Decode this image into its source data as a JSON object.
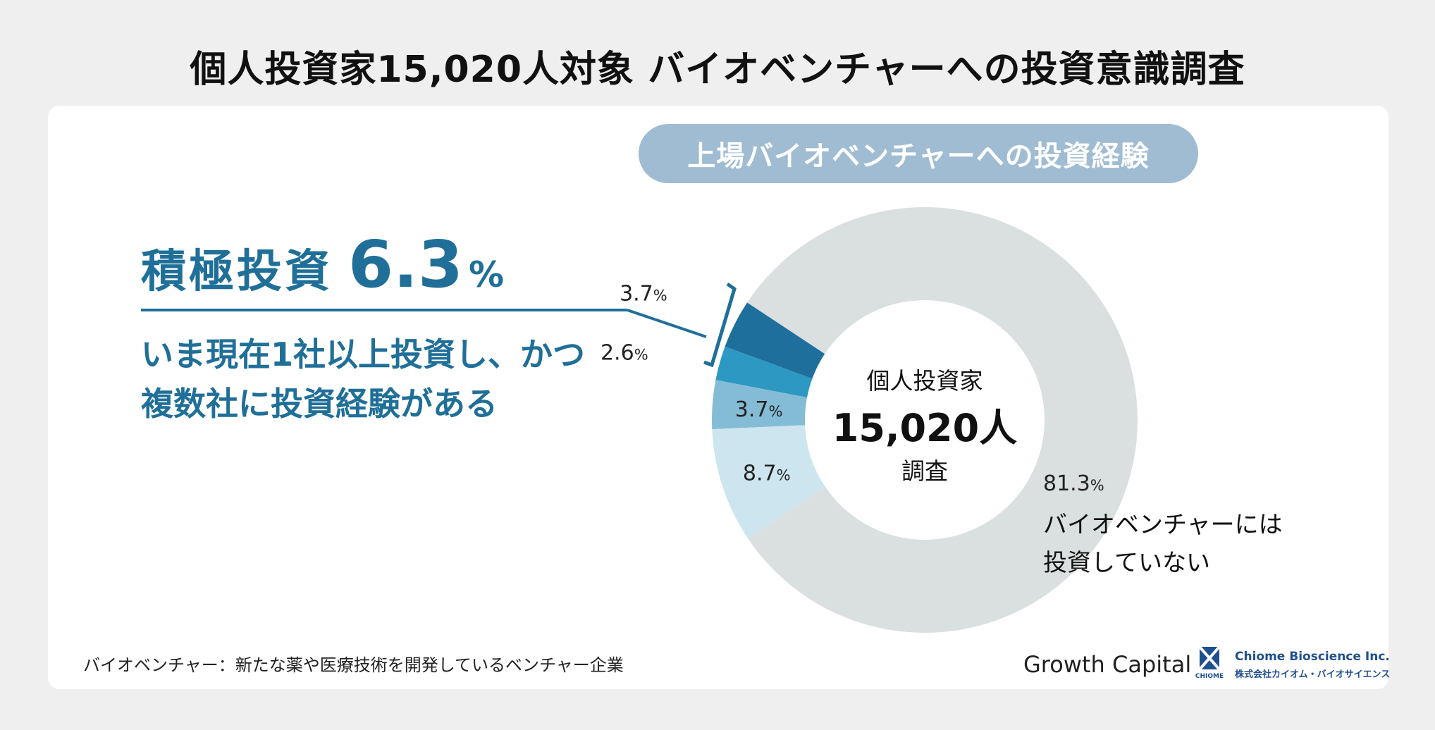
{
  "title": "個人投資家15,020人対象 バイオベンチャーへの投資意識調査",
  "subtitle": "上場バイオベンチャーへの投資経験",
  "highlight": {
    "label": "積極投資",
    "value": "6.3",
    "unit": "%",
    "description_lines": [
      "いま現在1社以上投資し、かつ",
      "複数社に投資経験がある"
    ]
  },
  "center": {
    "line1": "個人投資家",
    "line2": "15,020人",
    "line3": "調査"
  },
  "footnote": "バイオベンチャー：新たな薬や医療技術を開発しているベンチャー企業",
  "logos": {
    "growth_capital": "Growth Capital",
    "chiome_name": "Chiome Bioscience Inc.",
    "chiome_sub": "株式会社カイオム・バイオサイエンス",
    "chiome_mark_text": "CHIOME"
  },
  "colors": {
    "title_text": "#111111",
    "accent": "#1f6f99",
    "pill": "#9fbcd2",
    "chiome_blue": "#1f4f8f"
  },
  "chart_data": {
    "type": "pie",
    "variant": "donut",
    "unit": "%",
    "slices": [
      {
        "label": "3.7",
        "value": 3.7,
        "color": "#1e6f9b",
        "label_color": "#222222"
      },
      {
        "label": "2.6",
        "value": 2.6,
        "color": "#2d98c1",
        "label_color": "#222222"
      },
      {
        "label": "3.7",
        "value": 3.7,
        "color": "#84bcd5",
        "label_color": "#222222"
      },
      {
        "label": "8.7",
        "value": 8.7,
        "color": "#cde5ef",
        "label_color": "#222222"
      },
      {
        "label": "81.3",
        "value": 81.3,
        "color": "#dadfdf",
        "label_color": "#222222",
        "text_lines": [
          "バイオベンチャーには",
          "投資していない"
        ]
      }
    ]
  }
}
